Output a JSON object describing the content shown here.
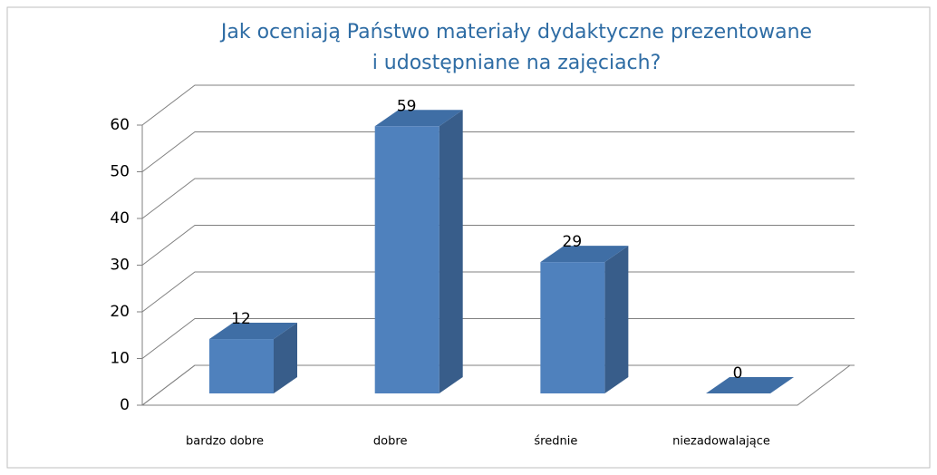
{
  "chart_data": {
    "type": "bar",
    "title": [
      "Jak oceniają Państwo materiały dydaktyczne prezentowane",
      "i udostępniane na zajęciach?"
    ],
    "categories": [
      "bardzo dobre",
      "dobre",
      "średnie",
      "niezadowalające"
    ],
    "values": [
      12,
      59,
      29,
      0
    ],
    "color": "#4f81bd",
    "ylim": [
      0,
      60
    ],
    "yticks": [
      0,
      10,
      20,
      30,
      40,
      50,
      60
    ],
    "grid": true
  }
}
